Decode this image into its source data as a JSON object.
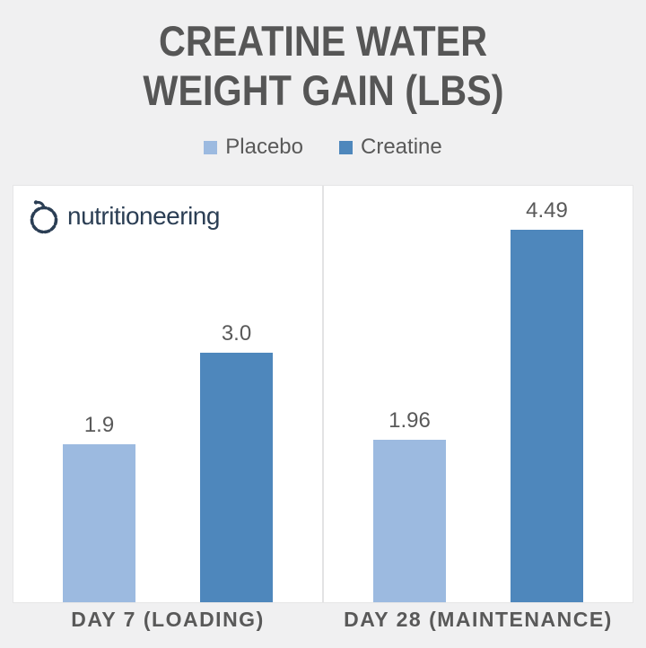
{
  "title": {
    "line1": "CREATINE WATER",
    "line2": "WEIGHT GAIN (LBS)"
  },
  "logo": {
    "text": "nutritioneering",
    "icon": "apple-circle-icon",
    "color": "#2b3e54"
  },
  "legend": [
    {
      "label": "Placebo",
      "color": "#9cbae0"
    },
    {
      "label": "Creatine",
      "color": "#4e87bc"
    }
  ],
  "chart_data": {
    "type": "bar",
    "title": "CREATINE WATER WEIGHT GAIN (LBS)",
    "unit": "lbs",
    "categories": [
      "DAY 7 (LOADING)",
      "DAY 28 (MAINTENANCE)"
    ],
    "series": [
      {
        "name": "Placebo",
        "color": "#9cbae0",
        "values": [
          1.9,
          1.96
        ],
        "value_labels": [
          "1.9",
          "1.96"
        ]
      },
      {
        "name": "Creatine",
        "color": "#4e87bc",
        "values": [
          3.0,
          4.49
        ],
        "value_labels": [
          "3.0",
          "4.49"
        ]
      }
    ],
    "ylim": [
      0,
      5
    ],
    "grid": false,
    "legend_position": "top",
    "colors": {
      "background": "#f0f0f1",
      "panel": "#ffffff",
      "text": "#595959",
      "title_text": "#565656",
      "logo_navy": "#2b3e54"
    }
  }
}
